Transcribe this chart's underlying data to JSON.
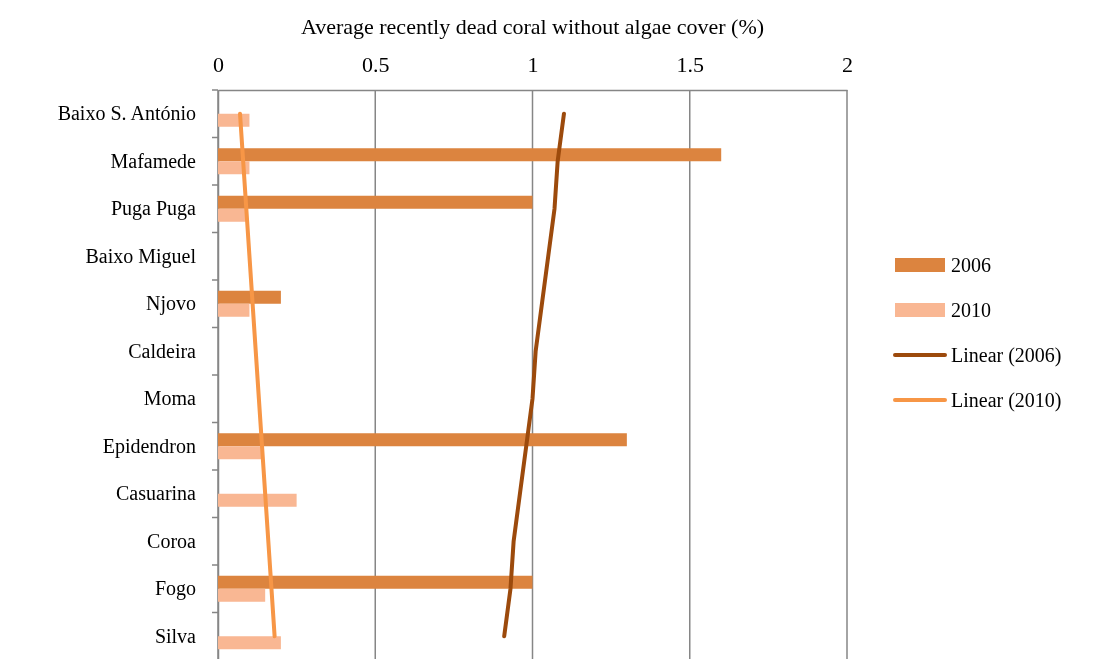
{
  "chart_data": {
    "type": "bar",
    "orientation": "horizontal",
    "xlabel": "Average recently dead coral without algae cover (%)",
    "categories": [
      "Baixo S. António",
      "Mafamede",
      "Puga Puga",
      "Baixo Miguel",
      "Njovo",
      "Caldeira",
      "Moma",
      "Epidendron",
      "Casuarina",
      "Coroa",
      "Fogo",
      "Silva"
    ],
    "series": [
      {
        "name": "2006",
        "color": "#dc843f",
        "values": [
          null,
          1.6,
          1,
          null,
          0.2,
          null,
          null,
          1.3,
          null,
          null,
          1,
          null
        ]
      },
      {
        "name": "2010",
        "color": "#f9b793",
        "values": [
          0.1,
          0.1,
          0.09,
          null,
          0.1,
          null,
          null,
          0.14,
          0.25,
          null,
          0.15,
          0.2
        ]
      },
      {
        "name": "Linear (2006)",
        "type": "line",
        "color": "#9c4a0c",
        "values": [
          1.1,
          1.08,
          1.07,
          1.05,
          1.03,
          1.01,
          1.0,
          0.98,
          0.96,
          0.94,
          0.93,
          0.91
        ]
      },
      {
        "name": "Linear (2010)",
        "type": "line",
        "color": "#f79646",
        "values": [
          0.07,
          0.08,
          0.09,
          0.1,
          0.11,
          0.12,
          0.13,
          0.14,
          0.15,
          0.16,
          0.17,
          0.18
        ]
      }
    ],
    "xlim": [
      0,
      2
    ],
    "xticks": [
      0,
      0.5,
      1,
      1.5,
      2
    ],
    "grid": "x",
    "legend": "right"
  }
}
